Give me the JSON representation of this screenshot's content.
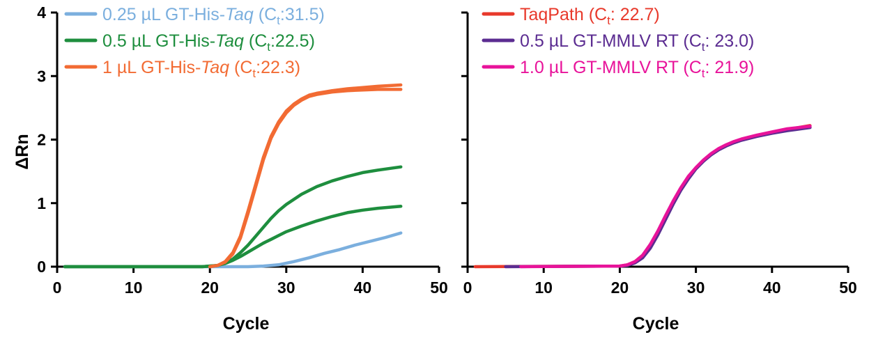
{
  "chart_data": [
    {
      "type": "line",
      "xlabel": "Cycle",
      "ylabel": "ΔRn",
      "xlim": [
        0,
        50
      ],
      "ylim": [
        0,
        4
      ],
      "xticks": [
        0,
        10,
        20,
        30,
        40,
        50
      ],
      "yticks": [
        0,
        1,
        2,
        3,
        4
      ],
      "legend_placement": "top-left",
      "series": [
        {
          "legend": {
            "prefix": "0.25 µL GT-His-",
            "italic": "Taq",
            "open": " (C",
            "sub": "t",
            "close": ":31.5)"
          },
          "color": "#7BAFDE",
          "x": [
            1,
            20,
            25,
            27,
            29,
            31,
            33,
            35,
            37,
            39,
            41,
            43,
            45
          ],
          "y": [
            0,
            0,
            0,
            0.01,
            0.03,
            0.08,
            0.14,
            0.21,
            0.27,
            0.34,
            0.4,
            0.46,
            0.53
          ]
        },
        {
          "legend": {
            "prefix": "0.5 µL GT-His-",
            "italic": "Taq",
            "open": " (C",
            "sub": "t",
            "close": ":22.5)"
          },
          "color": "#1E8E3E",
          "x": [
            1,
            19,
            20,
            21,
            22,
            23,
            24,
            25,
            26,
            27,
            28,
            29,
            30,
            32,
            34,
            36,
            38,
            40,
            42,
            45
          ],
          "y": [
            0,
            0,
            0.01,
            0.02,
            0.06,
            0.12,
            0.22,
            0.34,
            0.48,
            0.62,
            0.76,
            0.88,
            0.98,
            1.14,
            1.26,
            1.35,
            1.42,
            1.48,
            1.52,
            1.57
          ],
          "y2": [
            0,
            0,
            0.01,
            0.02,
            0.05,
            0.1,
            0.16,
            0.23,
            0.3,
            0.37,
            0.43,
            0.49,
            0.55,
            0.64,
            0.72,
            0.79,
            0.85,
            0.89,
            0.92,
            0.95
          ]
        },
        {
          "legend": {
            "prefix": "1 µL GT-His-",
            "italic": "Taq",
            "open": " (C",
            "sub": "t",
            "close": ":22.3)"
          },
          "color": "#F26B33",
          "x": [
            20,
            21,
            22,
            23,
            24,
            25,
            26,
            27,
            28,
            29,
            30,
            31,
            32,
            33,
            34,
            35,
            36,
            38,
            40,
            42,
            45
          ],
          "y": [
            0,
            0.02,
            0.08,
            0.22,
            0.48,
            0.88,
            1.3,
            1.72,
            2.05,
            2.28,
            2.45,
            2.56,
            2.64,
            2.7,
            2.73,
            2.75,
            2.77,
            2.8,
            2.82,
            2.84,
            2.86
          ],
          "y2": [
            0,
            0.02,
            0.07,
            0.2,
            0.45,
            0.84,
            1.26,
            1.68,
            2.02,
            2.25,
            2.42,
            2.54,
            2.62,
            2.68,
            2.71,
            2.73,
            2.75,
            2.77,
            2.78,
            2.79,
            2.79
          ]
        }
      ]
    },
    {
      "type": "line",
      "xlabel": "Cycle",
      "ylabel": "",
      "xlim": [
        0,
        50
      ],
      "ylim": [
        0,
        4
      ],
      "xticks": [
        0,
        10,
        20,
        30,
        40,
        50
      ],
      "yticks": [
        0,
        1,
        2,
        3,
        4
      ],
      "legend_placement": "top-left",
      "series": [
        {
          "legend": {
            "prefix": "TaqPath",
            "italic": "",
            "open": " (C",
            "sub": "t",
            "close": ": 22.7)"
          },
          "color": "#E8392B",
          "x": [
            1,
            20,
            21,
            22,
            23,
            24,
            25,
            26,
            27,
            28,
            29,
            30,
            31,
            32,
            33,
            34,
            35,
            36,
            38,
            40,
            42,
            45
          ],
          "y": [
            0,
            0.01,
            0.03,
            0.08,
            0.18,
            0.34,
            0.55,
            0.78,
            1.01,
            1.22,
            1.4,
            1.55,
            1.67,
            1.77,
            1.85,
            1.91,
            1.96,
            2.0,
            2.06,
            2.11,
            2.16,
            2.22
          ]
        },
        {
          "legend": {
            "prefix": "0.5 µL GT-MMLV RT",
            "italic": "",
            "open": " (C",
            "sub": "t",
            "close": ": 23.0)"
          },
          "color": "#5B2C91",
          "x": [
            5,
            20,
            21,
            22,
            23,
            24,
            25,
            26,
            27,
            28,
            29,
            30,
            31,
            32,
            33,
            34,
            35,
            36,
            38,
            40,
            42,
            45
          ],
          "y": [
            0,
            0.01,
            0.02,
            0.06,
            0.14,
            0.29,
            0.5,
            0.74,
            0.98,
            1.2,
            1.38,
            1.54,
            1.66,
            1.76,
            1.84,
            1.9,
            1.95,
            1.99,
            2.05,
            2.1,
            2.14,
            2.19
          ]
        },
        {
          "legend": {
            "prefix": "1.0 µL GT-MMLV RT",
            "italic": "",
            "open": " (C",
            "sub": "t",
            "close": ": 21.9)"
          },
          "color": "#E8139A",
          "x": [
            7,
            20,
            21,
            22,
            23,
            24,
            25,
            26,
            27,
            28,
            29,
            30,
            31,
            32,
            33,
            34,
            35,
            36,
            38,
            40,
            42,
            45
          ],
          "y": [
            0,
            0.01,
            0.03,
            0.08,
            0.18,
            0.35,
            0.56,
            0.8,
            1.03,
            1.24,
            1.42,
            1.56,
            1.68,
            1.78,
            1.86,
            1.92,
            1.97,
            2.01,
            2.07,
            2.12,
            2.17,
            2.21
          ]
        }
      ]
    }
  ]
}
